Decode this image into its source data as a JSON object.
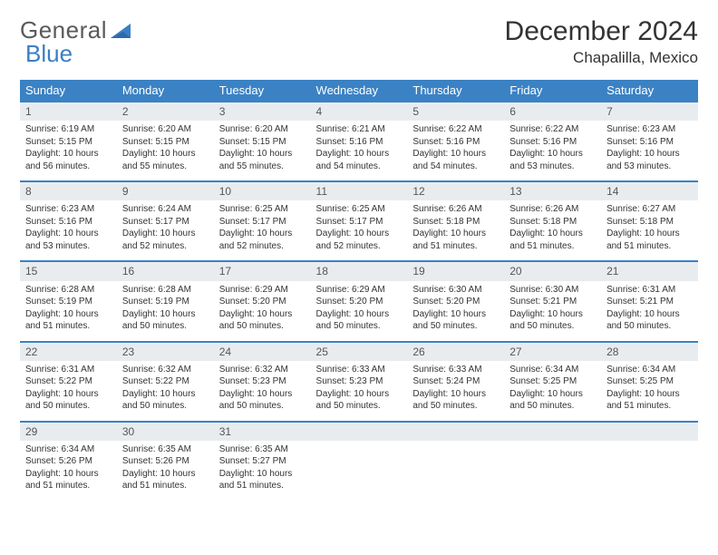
{
  "logo": {
    "text1": "General",
    "text2": "Blue"
  },
  "title": "December 2024",
  "location": "Chapalilla, Mexico",
  "colors": {
    "header_bg": "#3b82c4",
    "header_text": "#ffffff",
    "daynum_bg": "#e9ecef",
    "row_border": "#3b82c4",
    "logo_gray": "#5a5a5a",
    "logo_blue": "#3b7fc4"
  },
  "weekdays": [
    "Sunday",
    "Monday",
    "Tuesday",
    "Wednesday",
    "Thursday",
    "Friday",
    "Saturday"
  ],
  "weeks": [
    [
      {
        "n": "1",
        "sr": "Sunrise: 6:19 AM",
        "ss": "Sunset: 5:15 PM",
        "dl": "Daylight: 10 hours and 56 minutes."
      },
      {
        "n": "2",
        "sr": "Sunrise: 6:20 AM",
        "ss": "Sunset: 5:15 PM",
        "dl": "Daylight: 10 hours and 55 minutes."
      },
      {
        "n": "3",
        "sr": "Sunrise: 6:20 AM",
        "ss": "Sunset: 5:15 PM",
        "dl": "Daylight: 10 hours and 55 minutes."
      },
      {
        "n": "4",
        "sr": "Sunrise: 6:21 AM",
        "ss": "Sunset: 5:16 PM",
        "dl": "Daylight: 10 hours and 54 minutes."
      },
      {
        "n": "5",
        "sr": "Sunrise: 6:22 AM",
        "ss": "Sunset: 5:16 PM",
        "dl": "Daylight: 10 hours and 54 minutes."
      },
      {
        "n": "6",
        "sr": "Sunrise: 6:22 AM",
        "ss": "Sunset: 5:16 PM",
        "dl": "Daylight: 10 hours and 53 minutes."
      },
      {
        "n": "7",
        "sr": "Sunrise: 6:23 AM",
        "ss": "Sunset: 5:16 PM",
        "dl": "Daylight: 10 hours and 53 minutes."
      }
    ],
    [
      {
        "n": "8",
        "sr": "Sunrise: 6:23 AM",
        "ss": "Sunset: 5:16 PM",
        "dl": "Daylight: 10 hours and 53 minutes."
      },
      {
        "n": "9",
        "sr": "Sunrise: 6:24 AM",
        "ss": "Sunset: 5:17 PM",
        "dl": "Daylight: 10 hours and 52 minutes."
      },
      {
        "n": "10",
        "sr": "Sunrise: 6:25 AM",
        "ss": "Sunset: 5:17 PM",
        "dl": "Daylight: 10 hours and 52 minutes."
      },
      {
        "n": "11",
        "sr": "Sunrise: 6:25 AM",
        "ss": "Sunset: 5:17 PM",
        "dl": "Daylight: 10 hours and 52 minutes."
      },
      {
        "n": "12",
        "sr": "Sunrise: 6:26 AM",
        "ss": "Sunset: 5:18 PM",
        "dl": "Daylight: 10 hours and 51 minutes."
      },
      {
        "n": "13",
        "sr": "Sunrise: 6:26 AM",
        "ss": "Sunset: 5:18 PM",
        "dl": "Daylight: 10 hours and 51 minutes."
      },
      {
        "n": "14",
        "sr": "Sunrise: 6:27 AM",
        "ss": "Sunset: 5:18 PM",
        "dl": "Daylight: 10 hours and 51 minutes."
      }
    ],
    [
      {
        "n": "15",
        "sr": "Sunrise: 6:28 AM",
        "ss": "Sunset: 5:19 PM",
        "dl": "Daylight: 10 hours and 51 minutes."
      },
      {
        "n": "16",
        "sr": "Sunrise: 6:28 AM",
        "ss": "Sunset: 5:19 PM",
        "dl": "Daylight: 10 hours and 50 minutes."
      },
      {
        "n": "17",
        "sr": "Sunrise: 6:29 AM",
        "ss": "Sunset: 5:20 PM",
        "dl": "Daylight: 10 hours and 50 minutes."
      },
      {
        "n": "18",
        "sr": "Sunrise: 6:29 AM",
        "ss": "Sunset: 5:20 PM",
        "dl": "Daylight: 10 hours and 50 minutes."
      },
      {
        "n": "19",
        "sr": "Sunrise: 6:30 AM",
        "ss": "Sunset: 5:20 PM",
        "dl": "Daylight: 10 hours and 50 minutes."
      },
      {
        "n": "20",
        "sr": "Sunrise: 6:30 AM",
        "ss": "Sunset: 5:21 PM",
        "dl": "Daylight: 10 hours and 50 minutes."
      },
      {
        "n": "21",
        "sr": "Sunrise: 6:31 AM",
        "ss": "Sunset: 5:21 PM",
        "dl": "Daylight: 10 hours and 50 minutes."
      }
    ],
    [
      {
        "n": "22",
        "sr": "Sunrise: 6:31 AM",
        "ss": "Sunset: 5:22 PM",
        "dl": "Daylight: 10 hours and 50 minutes."
      },
      {
        "n": "23",
        "sr": "Sunrise: 6:32 AM",
        "ss": "Sunset: 5:22 PM",
        "dl": "Daylight: 10 hours and 50 minutes."
      },
      {
        "n": "24",
        "sr": "Sunrise: 6:32 AM",
        "ss": "Sunset: 5:23 PM",
        "dl": "Daylight: 10 hours and 50 minutes."
      },
      {
        "n": "25",
        "sr": "Sunrise: 6:33 AM",
        "ss": "Sunset: 5:23 PM",
        "dl": "Daylight: 10 hours and 50 minutes."
      },
      {
        "n": "26",
        "sr": "Sunrise: 6:33 AM",
        "ss": "Sunset: 5:24 PM",
        "dl": "Daylight: 10 hours and 50 minutes."
      },
      {
        "n": "27",
        "sr": "Sunrise: 6:34 AM",
        "ss": "Sunset: 5:25 PM",
        "dl": "Daylight: 10 hours and 50 minutes."
      },
      {
        "n": "28",
        "sr": "Sunrise: 6:34 AM",
        "ss": "Sunset: 5:25 PM",
        "dl": "Daylight: 10 hours and 51 minutes."
      }
    ],
    [
      {
        "n": "29",
        "sr": "Sunrise: 6:34 AM",
        "ss": "Sunset: 5:26 PM",
        "dl": "Daylight: 10 hours and 51 minutes."
      },
      {
        "n": "30",
        "sr": "Sunrise: 6:35 AM",
        "ss": "Sunset: 5:26 PM",
        "dl": "Daylight: 10 hours and 51 minutes."
      },
      {
        "n": "31",
        "sr": "Sunrise: 6:35 AM",
        "ss": "Sunset: 5:27 PM",
        "dl": "Daylight: 10 hours and 51 minutes."
      },
      {
        "empty": true
      },
      {
        "empty": true
      },
      {
        "empty": true
      },
      {
        "empty": true
      }
    ]
  ]
}
